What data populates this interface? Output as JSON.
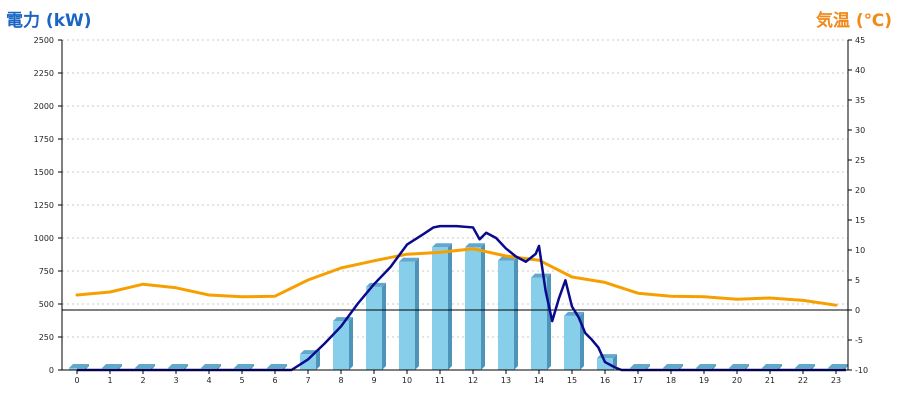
{
  "chart_data": {
    "type": "bar+line",
    "left_axis_title": "電力 (kW)",
    "right_axis_title": "気温 (℃)",
    "x": [
      0,
      1,
      2,
      3,
      4,
      5,
      6,
      7,
      8,
      9,
      10,
      11,
      12,
      13,
      14,
      15,
      16,
      17,
      18,
      19,
      20,
      21,
      22,
      23
    ],
    "ylim_left": [
      0,
      2500
    ],
    "yticks_left": [
      0,
      250,
      500,
      750,
      1000,
      1250,
      1500,
      1750,
      2000,
      2250,
      2500
    ],
    "ylim_right": [
      -10,
      45
    ],
    "yticks_right": [
      -10,
      -5,
      0,
      5,
      10,
      15,
      20,
      25,
      30,
      35,
      40,
      45
    ],
    "reference_line_right": 0,
    "grid": "horizontal-dashed",
    "bars": {
      "color": "#87ceeb",
      "values": [
        15,
        15,
        15,
        15,
        15,
        15,
        15,
        120,
        370,
        630,
        820,
        930,
        930,
        830,
        700,
        410,
        90,
        15,
        15,
        15,
        15,
        15,
        15,
        15
      ]
    },
    "power_line": {
      "color": "#0a0a8c",
      "points": [
        [
          0,
          0
        ],
        [
          6.5,
          0
        ],
        [
          7,
          80
        ],
        [
          7.5,
          200
        ],
        [
          8,
          330
        ],
        [
          8.5,
          500
        ],
        [
          9,
          650
        ],
        [
          9.5,
          780
        ],
        [
          10,
          950
        ],
        [
          10.5,
          1030
        ],
        [
          10.8,
          1080
        ],
        [
          11,
          1090
        ],
        [
          11.5,
          1090
        ],
        [
          12,
          1080
        ],
        [
          12.2,
          990
        ],
        [
          12.4,
          1040
        ],
        [
          12.7,
          1000
        ],
        [
          13,
          920
        ],
        [
          13.3,
          860
        ],
        [
          13.6,
          820
        ],
        [
          13.9,
          880
        ],
        [
          14,
          940
        ],
        [
          14.2,
          600
        ],
        [
          14.4,
          370
        ],
        [
          14.6,
          540
        ],
        [
          14.8,
          680
        ],
        [
          15,
          480
        ],
        [
          15.2,
          400
        ],
        [
          15.4,
          280
        ],
        [
          15.6,
          230
        ],
        [
          15.8,
          170
        ],
        [
          16,
          60
        ],
        [
          16.3,
          20
        ],
        [
          16.5,
          0
        ],
        [
          23.3,
          0
        ]
      ]
    },
    "temperature_line": {
      "color": "#f5a000",
      "values": [
        2.5,
        3.0,
        4.3,
        3.7,
        2.5,
        2.2,
        2.3,
        5.0,
        7.0,
        8.2,
        9.3,
        9.6,
        10.2,
        9.0,
        8.3,
        5.5,
        4.6,
        2.8,
        2.3,
        2.2,
        1.8,
        2.0,
        1.6,
        0.8
      ]
    }
  }
}
